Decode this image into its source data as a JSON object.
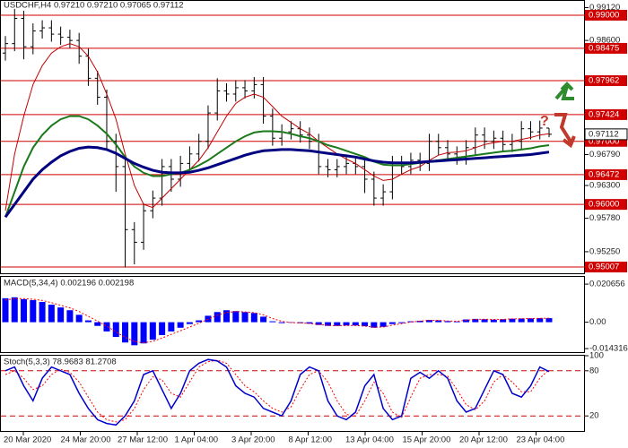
{
  "chart_data": [
    {
      "type": "candlestick",
      "title": "USDCHF,H4  0.97210 0.97210 0.97065 0.97112",
      "open": [
        0.984,
        0.9855,
        0.9895,
        0.985,
        0.9875,
        0.988,
        0.987,
        0.9865,
        0.986,
        0.9835,
        0.98,
        0.977,
        0.97,
        0.966,
        0.956,
        0.954,
        0.959,
        0.961,
        0.966,
        0.964,
        0.9665,
        0.968,
        0.97,
        0.9745,
        0.978,
        0.9775,
        0.9785,
        0.978,
        0.979,
        0.974,
        0.9705,
        0.9715,
        0.972,
        0.971,
        0.97,
        0.966,
        0.9655,
        0.966,
        0.9665,
        0.966,
        0.964,
        0.961,
        0.962,
        0.9665,
        0.966,
        0.967,
        0.9665,
        0.97,
        0.969,
        0.968,
        0.9675,
        0.969,
        0.971,
        0.97,
        0.9705,
        0.9695,
        0.97,
        0.972,
        0.9715,
        0.9721
      ],
      "high": [
        0.9867,
        0.991,
        0.9907,
        0.9887,
        0.9892,
        0.9892,
        0.9882,
        0.9877,
        0.9872,
        0.9847,
        0.9812,
        0.9782,
        0.9712,
        0.9672,
        0.9572,
        0.9602,
        0.9622,
        0.9672,
        0.9672,
        0.9677,
        0.9692,
        0.9712,
        0.9757,
        0.98,
        0.9792,
        0.9797,
        0.9797,
        0.9802,
        0.9802,
        0.9752,
        0.9727,
        0.9732,
        0.9732,
        0.9722,
        0.9712,
        0.9672,
        0.9672,
        0.9677,
        0.9677,
        0.9672,
        0.9652,
        0.9632,
        0.9677,
        0.9677,
        0.9682,
        0.9682,
        0.9712,
        0.9712,
        0.9702,
        0.9692,
        0.9702,
        0.9722,
        0.9722,
        0.9717,
        0.9717,
        0.9712,
        0.9732,
        0.9732,
        0.9733,
        0.9721
      ],
      "low": [
        0.9828,
        0.9843,
        0.983,
        0.9838,
        0.9863,
        0.9858,
        0.9853,
        0.9848,
        0.9823,
        0.9788,
        0.9758,
        0.9688,
        0.962,
        0.95,
        0.9505,
        0.9528,
        0.9578,
        0.9598,
        0.962,
        0.9628,
        0.9653,
        0.9668,
        0.9688,
        0.9733,
        0.9763,
        0.9763,
        0.9768,
        0.9768,
        0.9728,
        0.9693,
        0.9693,
        0.9703,
        0.9698,
        0.9688,
        0.9648,
        0.9643,
        0.9643,
        0.9648,
        0.9648,
        0.9618,
        0.9598,
        0.9598,
        0.9608,
        0.9648,
        0.9648,
        0.9653,
        0.9653,
        0.9678,
        0.9668,
        0.9663,
        0.9663,
        0.9678,
        0.9688,
        0.9688,
        0.9683,
        0.9683,
        0.9688,
        0.9703,
        0.9703,
        0.97065
      ],
      "close": [
        0.9855,
        0.9895,
        0.985,
        0.9875,
        0.988,
        0.987,
        0.9865,
        0.986,
        0.9835,
        0.98,
        0.977,
        0.97,
        0.966,
        0.956,
        0.954,
        0.959,
        0.961,
        0.966,
        0.964,
        0.9665,
        0.968,
        0.97,
        0.9745,
        0.978,
        0.9775,
        0.9785,
        0.978,
        0.979,
        0.974,
        0.9705,
        0.9715,
        0.972,
        0.971,
        0.97,
        0.966,
        0.9655,
        0.966,
        0.9665,
        0.966,
        0.964,
        0.961,
        0.962,
        0.9665,
        0.966,
        0.967,
        0.9665,
        0.97,
        0.969,
        0.968,
        0.9675,
        0.969,
        0.971,
        0.97,
        0.9705,
        0.9695,
        0.97,
        0.972,
        0.9715,
        0.9721,
        0.97112
      ],
      "color": "#000000",
      "lines": [
        {
          "color": "#c00000",
          "width": 1,
          "values": [
            0.959,
            0.968,
            0.974,
            0.979,
            0.982,
            0.984,
            0.985,
            0.9855,
            0.985,
            0.9835,
            0.981,
            0.9775,
            0.9735,
            0.968,
            0.963,
            0.96,
            0.9595,
            0.961,
            0.9625,
            0.964,
            0.9655,
            0.967,
            0.969,
            0.9715,
            0.974,
            0.976,
            0.977,
            0.9775,
            0.977,
            0.9755,
            0.974,
            0.973,
            0.972,
            0.9712,
            0.97,
            0.969,
            0.968,
            0.9672,
            0.9665,
            0.9655,
            0.9645,
            0.9638,
            0.964,
            0.9648,
            0.9655,
            0.966,
            0.967,
            0.9678,
            0.9682,
            0.9683,
            0.9685,
            0.969,
            0.9695,
            0.9698,
            0.97,
            0.97,
            0.9703,
            0.9706,
            0.971,
            0.9712
          ]
        },
        {
          "color": "#1a7a1a",
          "width": 2,
          "values": [
            0.958,
            0.962,
            0.966,
            0.969,
            0.971,
            0.9725,
            0.9735,
            0.974,
            0.974,
            0.9735,
            0.9725,
            0.9712,
            0.9695,
            0.9675,
            0.966,
            0.965,
            0.9645,
            0.9645,
            0.9648,
            0.965,
            0.9655,
            0.9662,
            0.967,
            0.968,
            0.969,
            0.97,
            0.9708,
            0.9714,
            0.9716,
            0.9716,
            0.9715,
            0.9712,
            0.9708,
            0.9705,
            0.97,
            0.9694,
            0.969,
            0.9685,
            0.968,
            0.9675,
            0.9668,
            0.9663,
            0.9662,
            0.9662,
            0.9664,
            0.9666,
            0.9668,
            0.967,
            0.9672,
            0.9674,
            0.9676,
            0.9678,
            0.968,
            0.9682,
            0.9684,
            0.9685,
            0.9687,
            0.9689,
            0.9692,
            0.9694
          ]
        },
        {
          "color": "#000080",
          "width": 3,
          "values": [
            0.958,
            0.96,
            0.962,
            0.964,
            0.9655,
            0.9667,
            0.9677,
            0.9684,
            0.9689,
            0.9691,
            0.969,
            0.9687,
            0.9681,
            0.9673,
            0.9665,
            0.9659,
            0.9654,
            0.9651,
            0.965,
            0.965,
            0.9651,
            0.9654,
            0.9658,
            0.9663,
            0.9668,
            0.9673,
            0.9678,
            0.9682,
            0.9685,
            0.9686,
            0.9687,
            0.9687,
            0.9686,
            0.9685,
            0.9683,
            0.9681,
            0.9679,
            0.9677,
            0.9675,
            0.9672,
            0.9669,
            0.9667,
            0.9666,
            0.9666,
            0.9666,
            0.9667,
            0.9668,
            0.9669,
            0.967,
            0.9671,
            0.9672,
            0.9673,
            0.9674,
            0.9675,
            0.9676,
            0.9677,
            0.9678,
            0.9679,
            0.9681,
            0.9683
          ]
        }
      ],
      "ylim": [
        0.94908,
        0.99227
      ],
      "yticks": [
        {
          "value": 0.9912,
          "label": "0.99120"
        },
        {
          "value": 0.986,
          "label": "0.98600"
        },
        {
          "value": 0.9679,
          "label": "0.96790"
        },
        {
          "value": 0.963,
          "label": "0.96300"
        },
        {
          "value": 0.9578,
          "label": "0.95780"
        },
        {
          "value": 0.9525,
          "label": "0.95250"
        }
      ],
      "levels": [
        {
          "value": 0.99,
          "label": "0.99000"
        },
        {
          "value": 0.98475,
          "label": "0.98475"
        },
        {
          "value": 0.97962,
          "label": "0.97962"
        },
        {
          "value": 0.97424,
          "label": "0.97424"
        },
        {
          "value": 0.97,
          "label": "0.97000"
        },
        {
          "value": 0.96472,
          "label": "0.96472"
        },
        {
          "value": 0.96,
          "label": "0.96000"
        },
        {
          "value": 0.95007,
          "label": "0.95007"
        }
      ],
      "level_color": "#d00000",
      "last": {
        "value": 0.97112,
        "label": "0.97112"
      },
      "x_labels": [
        "20 Mar 2020",
        "24 Mar 20:00",
        "27 Mar 12:00",
        "1 Apr 04:00",
        "3 Apr 20:00",
        "8 Apr 12:00",
        "13 Apr 04:00",
        "15 Apr 20:00",
        "20 Apr 12:00",
        "23 Apr 04:00"
      ]
    },
    {
      "type": "macd",
      "title": "MACD(5,34,4) 0.002196 0.002198",
      "values": [
        0.013,
        0.0135,
        0.0125,
        0.012,
        0.011,
        0.0095,
        0.008,
        0.0065,
        0.004,
        0.001,
        -0.002,
        -0.005,
        -0.008,
        -0.011,
        -0.0125,
        -0.0115,
        -0.0095,
        -0.007,
        -0.005,
        -0.003,
        -0.001,
        0.001,
        0.0035,
        0.0055,
        0.0065,
        0.006,
        0.0055,
        0.005,
        0.003,
        0.0005,
        -0.0005,
        -0.0003,
        -0.0005,
        -0.0008,
        -0.0015,
        -0.002,
        -0.002,
        -0.0018,
        -0.0018,
        -0.0022,
        -0.003,
        -0.0025,
        -0.001,
        -0.0005,
        0.0005,
        0.0008,
        0.0012,
        0.001,
        0.0006,
        0.0004,
        0.0015,
        0.0018,
        0.0016,
        0.0014,
        0.0016,
        0.0019,
        0.002,
        0.0021,
        0.0022,
        0.0022
      ],
      "signal": [
        0.012,
        0.0128,
        0.0128,
        0.0125,
        0.0118,
        0.0106,
        0.0092,
        0.0078,
        0.0058,
        0.0032,
        0.0006,
        -0.0022,
        -0.0052,
        -0.0082,
        -0.0105,
        -0.0112,
        -0.0104,
        -0.0086,
        -0.0066,
        -0.0046,
        -0.0026,
        -0.0006,
        0.0016,
        0.0038,
        0.0053,
        0.0058,
        0.0056,
        0.0052,
        0.004,
        0.002,
        0.0005,
        -0.0002,
        -0.0004,
        -0.0007,
        -0.0012,
        -0.0017,
        -0.0019,
        -0.0018,
        -0.0018,
        -0.0021,
        -0.0027,
        -0.0026,
        -0.0016,
        -0.0008,
        0.0001,
        0.0006,
        0.001,
        0.001,
        0.0007,
        0.0005,
        0.0011,
        0.0015,
        0.0016,
        0.0015,
        0.0015,
        0.0018,
        0.0019,
        0.002,
        0.0021,
        0.0022
      ],
      "color": "#0000ff",
      "signal_color": "#ff0000",
      "ylim": [
        -0.01623,
        0.02459
      ],
      "yticks": [
        {
          "value": 0.020656,
          "label": "0.020656"
        },
        {
          "value": 0,
          "label": "0.00"
        },
        {
          "value": -0.014316,
          "label": "-0.014316"
        }
      ]
    },
    {
      "type": "stoch",
      "title": "Stoch(5,3,3) 78.9683 81.2708",
      "k": [
        80,
        85,
        60,
        40,
        70,
        85,
        80,
        75,
        50,
        30,
        15,
        10,
        8,
        20,
        40,
        75,
        80,
        55,
        30,
        50,
        80,
        90,
        95,
        93,
        85,
        60,
        50,
        45,
        30,
        25,
        20,
        40,
        75,
        85,
        80,
        40,
        20,
        15,
        25,
        60,
        75,
        30,
        15,
        20,
        70,
        78,
        70,
        80,
        70,
        40,
        25,
        30,
        55,
        80,
        75,
        50,
        45,
        60,
        85,
        78.9683
      ],
      "d": [
        75,
        80,
        70,
        55,
        60,
        75,
        82,
        78,
        65,
        45,
        25,
        15,
        12,
        15,
        30,
        55,
        72,
        68,
        50,
        45,
        65,
        85,
        92,
        94,
        90,
        75,
        60,
        52,
        40,
        30,
        25,
        32,
        55,
        75,
        80,
        65,
        40,
        22,
        20,
        40,
        65,
        50,
        25,
        18,
        45,
        70,
        75,
        75,
        73,
        55,
        35,
        28,
        40,
        65,
        75,
        65,
        52,
        52,
        70,
        81.2708
      ],
      "k_color": "#0000cc",
      "d_color": "#ff0000",
      "ylim": [
        0,
        100
      ],
      "yticks": [
        100,
        80,
        20
      ],
      "levels": [
        80,
        20
      ]
    }
  ]
}
